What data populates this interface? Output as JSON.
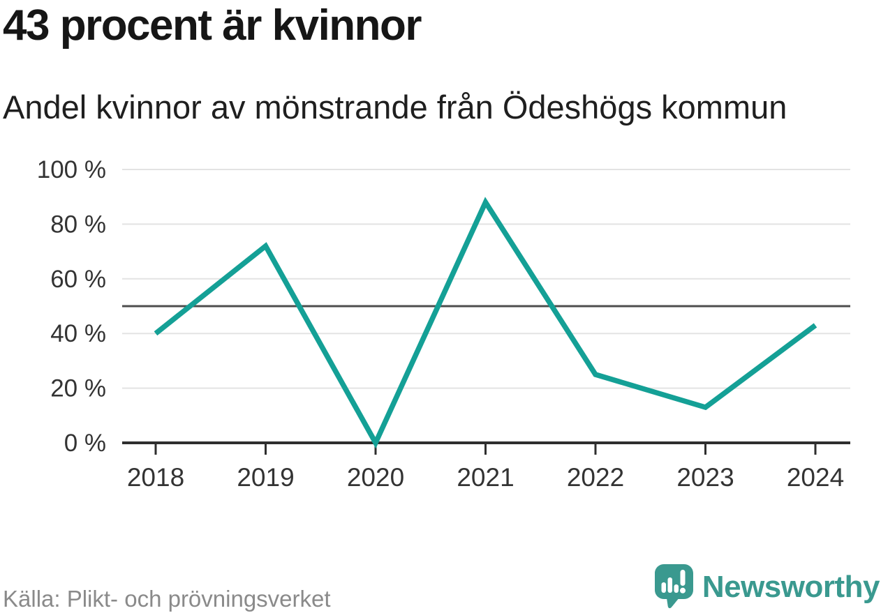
{
  "header": {
    "title": "43 procent är kvinnor",
    "subtitle": "Andel kvinnor av mönstrande från Ödeshögs kommun"
  },
  "footer": {
    "source": "Källa: Plikt- och prövningsverket",
    "brand": {
      "name": "Newsworthy",
      "icon": "newsworthy-speech-bubble-bar-chart-icon"
    }
  },
  "colors": {
    "line": "#14a096",
    "grid": "#e3e3e3",
    "reference_line": "#4d4d4d",
    "axis": "#2e2e2e",
    "tick_label": "#333333",
    "title": "#161616",
    "subtitle": "#1f1f1f",
    "source_text": "#8a8a8a",
    "brand": "#3a998f"
  },
  "chart_data": {
    "type": "line",
    "title": "43 procent är kvinnor",
    "subtitle": "Andel kvinnor av mönstrande från Ödeshögs kommun",
    "x": [
      "2018",
      "2019",
      "2020",
      "2021",
      "2022",
      "2023",
      "2024"
    ],
    "series": [
      {
        "name": "Andel kvinnor av mönstrande",
        "values": [
          40,
          72,
          0,
          88,
          25,
          13,
          43
        ]
      }
    ],
    "xlabel": "",
    "ylabel": "",
    "ylim": [
      0,
      100
    ],
    "yticks": [
      0,
      20,
      40,
      60,
      80,
      100
    ],
    "ytick_format": "{v} %",
    "reference_line": 50,
    "grid": "horizontal",
    "legend": "none"
  }
}
